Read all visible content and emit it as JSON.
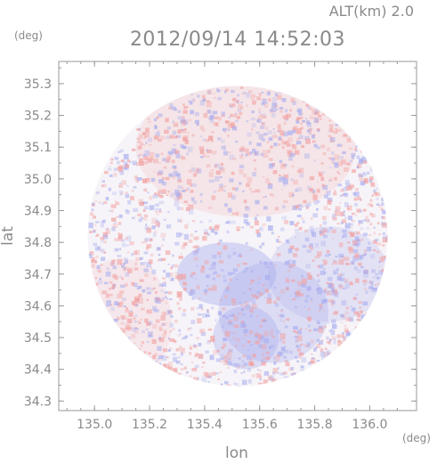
{
  "header": {
    "altitude_label": "ALT(km) 2.0",
    "timestamp": "2012/09/14 14:52:03",
    "y_unit": "(deg)"
  },
  "footer": {
    "x_unit": "(deg)"
  },
  "chart_data": {
    "type": "heatmap",
    "title": "2012/09/14 14:52:03",
    "subtitle": "ALT(km) 2.0",
    "xlabel": "lon",
    "ylabel": "lat",
    "x_unit": "(deg)",
    "y_unit": "(deg)",
    "xlim": [
      134.87,
      136.17
    ],
    "ylim": [
      34.27,
      35.37
    ],
    "x_ticks": [
      "135.0",
      "135.2",
      "135.4",
      "135.6",
      "135.8",
      "136.0"
    ],
    "y_ticks": [
      "34.3",
      "34.4",
      "34.5",
      "34.6",
      "34.7",
      "34.8",
      "34.9",
      "35.0",
      "35.1",
      "35.2",
      "35.3"
    ],
    "x_tick_values": [
      135.0,
      135.2,
      135.4,
      135.6,
      135.8,
      136.0
    ],
    "y_tick_values": [
      34.3,
      34.4,
      34.5,
      34.6,
      34.7,
      34.8,
      34.9,
      35.0,
      35.1,
      35.2,
      35.3
    ],
    "domain": {
      "shape": "circle",
      "center_lon": 135.52,
      "center_lat": 34.82,
      "radius_deg": 0.545
    },
    "colors": {
      "positive": "#f2a0a0",
      "negative": "#a8acee",
      "neutral": "#ffffff",
      "axis": "#9a9a9a"
    },
    "grid": false,
    "features": [
      {
        "name": "positive region",
        "lon": 135.55,
        "lat": 35.1,
        "rx": 0.4,
        "ry": 0.22,
        "level": 0.3
      },
      {
        "name": "negative region",
        "lon": 135.48,
        "lat": 34.7,
        "rx": 0.18,
        "ry": 0.1,
        "level": -0.7
      },
      {
        "name": "negative region",
        "lon": 135.65,
        "lat": 34.58,
        "rx": 0.2,
        "ry": 0.16,
        "level": -0.55
      },
      {
        "name": "negative region",
        "lon": 135.55,
        "lat": 34.5,
        "rx": 0.12,
        "ry": 0.1,
        "level": -0.6
      },
      {
        "name": "negative region",
        "lon": 135.85,
        "lat": 34.7,
        "rx": 0.22,
        "ry": 0.15,
        "level": -0.4
      },
      {
        "name": "positive region",
        "lon": 135.1,
        "lat": 34.55,
        "rx": 0.18,
        "ry": 0.2,
        "level": 0.25
      }
    ]
  }
}
